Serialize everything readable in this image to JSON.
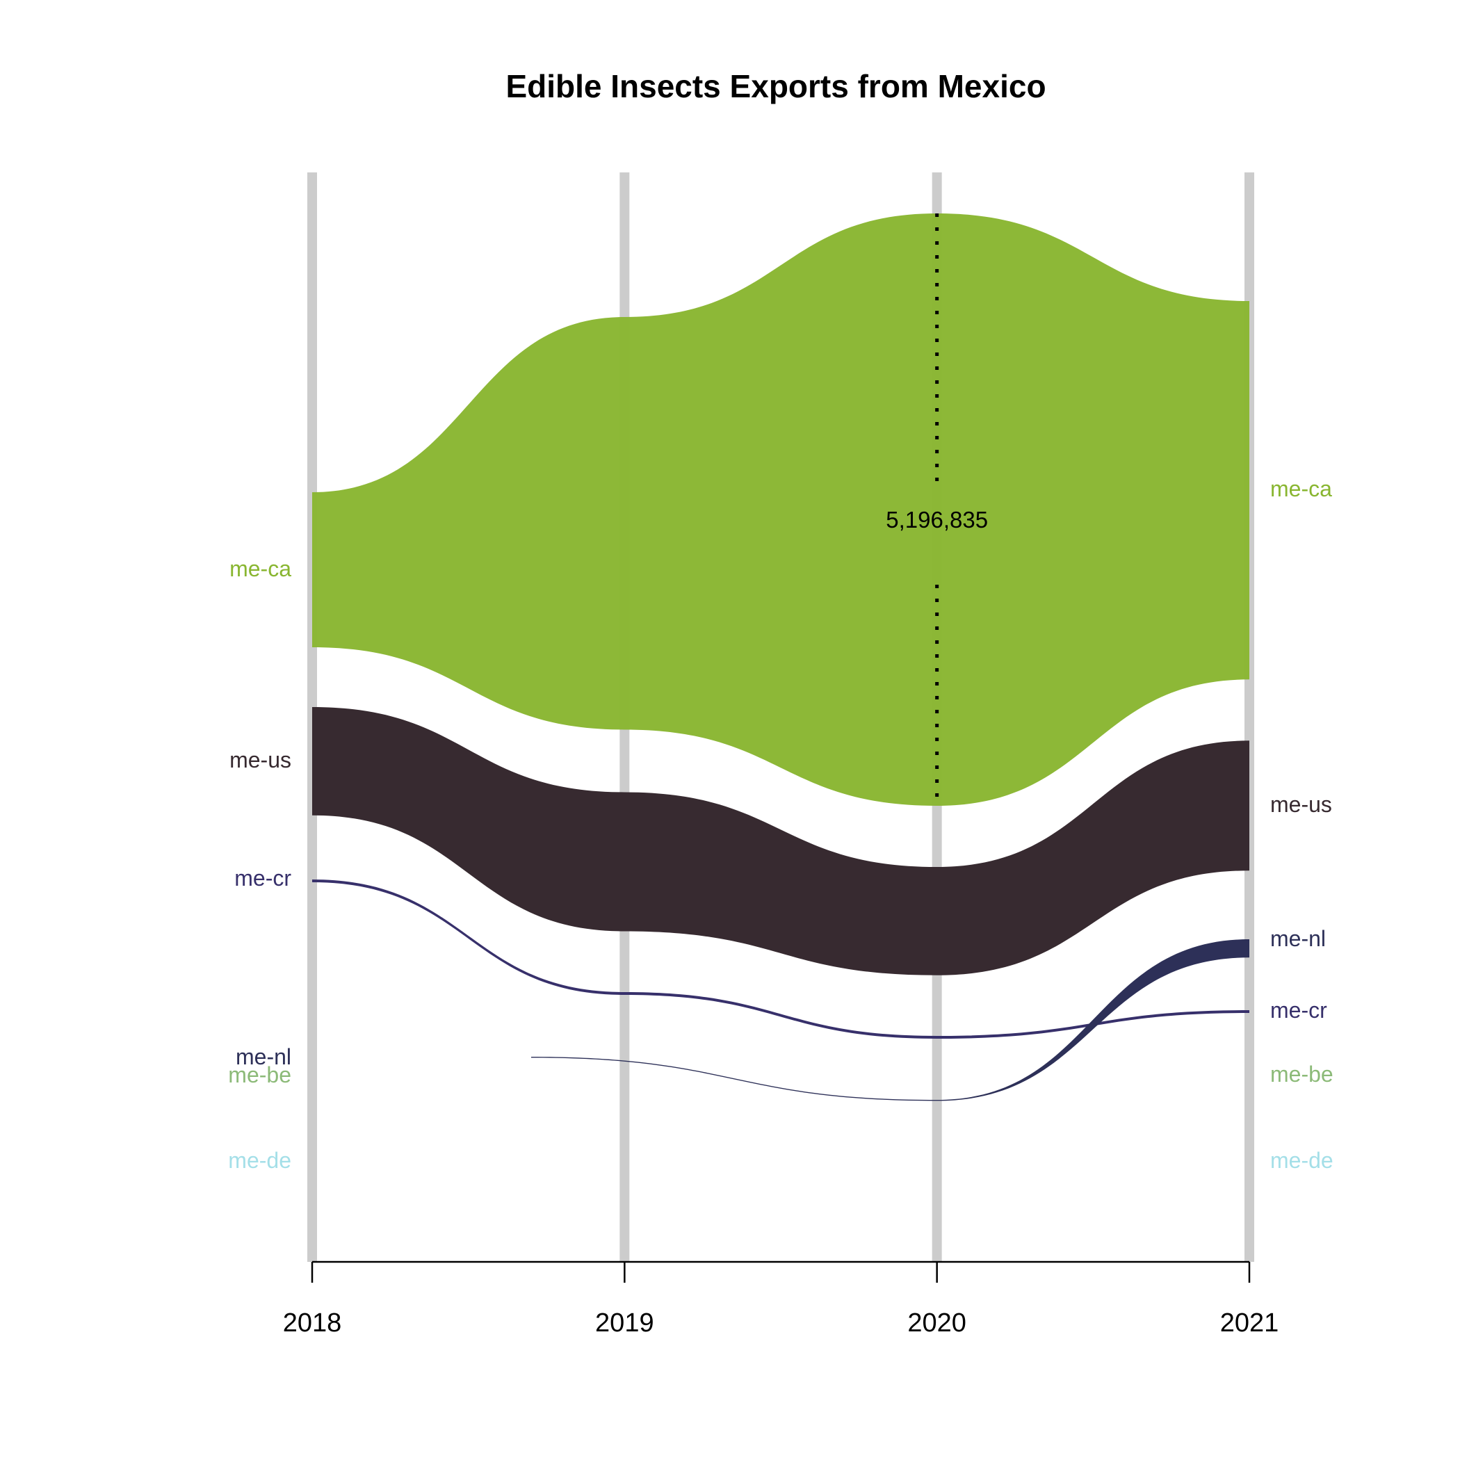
{
  "chart_data": {
    "type": "area",
    "title": "Edible Insects Exports from Mexico",
    "x": [
      2018,
      2019,
      2020,
      2021
    ],
    "x_tick_labels": [
      "2018",
      "2019",
      "2020",
      "2021"
    ],
    "xlabel": "",
    "ylabel": "",
    "annotation": {
      "x": 2020,
      "series": "me-ca",
      "text": "5,196,835"
    },
    "series": [
      {
        "name": "me-ca",
        "color": "#89b631",
        "values": [
          1360000,
          3620000,
          5196835,
          3320000
        ]
      },
      {
        "name": "me-us",
        "color": "#372a30",
        "values": [
          950000,
          1220000,
          950000,
          1140000
        ]
      },
      {
        "name": "me-cr",
        "color": "#37306b",
        "values": [
          22000,
          22000,
          22000,
          22000
        ]
      },
      {
        "name": "me-nl",
        "color": "#2d3058",
        "values": [
          0,
          4000,
          4000,
          160000
        ]
      },
      {
        "name": "me-be",
        "color": "#8cba78",
        "values": [
          0,
          0,
          0,
          0
        ]
      },
      {
        "name": "me-de",
        "color": "#a4dfe8",
        "values": [
          0,
          0,
          0,
          0
        ]
      }
    ],
    "left_label_order": [
      "me-ca",
      "me-us",
      "me-cr",
      "me-nl",
      "me-be",
      "me-de"
    ],
    "right_label_order": [
      "me-ca",
      "me-us",
      "me-nl",
      "me-cr",
      "me-be",
      "me-de"
    ],
    "grid": "vertical bars at each year"
  }
}
